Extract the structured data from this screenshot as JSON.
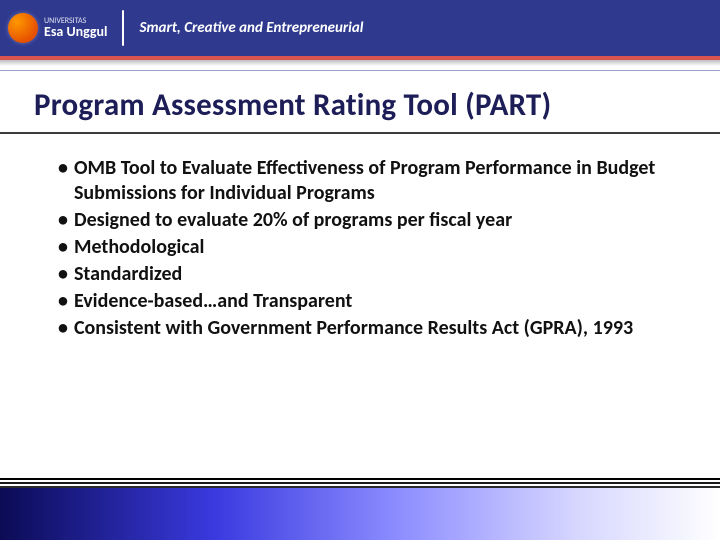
{
  "header": {
    "logo_small": "UNIVERSITAS",
    "logo_main": "Esa Unggul",
    "tagline": "Smart, Creative and Entrepreneurial",
    "bg_color": "#2f3a8f",
    "stripe_color": "#d9534f"
  },
  "title": {
    "text": "Program Assessment Rating Tool (PART)",
    "color": "#1d1d57",
    "fontsize": 31
  },
  "bullets": [
    "OMB Tool to Evaluate Effectiveness of Program Performance in Budget Submissions for Individual Programs",
    "Designed to evaluate 20% of programs per fiscal year",
    "Methodological",
    "Standardized",
    "Evidence-based…and Transparent",
    "Consistent with Government Performance Results Act (GPRA), 1993"
  ],
  "body_style": {
    "fontsize": 20,
    "color": "#111111",
    "weight": "600"
  },
  "footer": {
    "gradient_from": "#0b0b55",
    "gradient_to": "#ffffff"
  }
}
